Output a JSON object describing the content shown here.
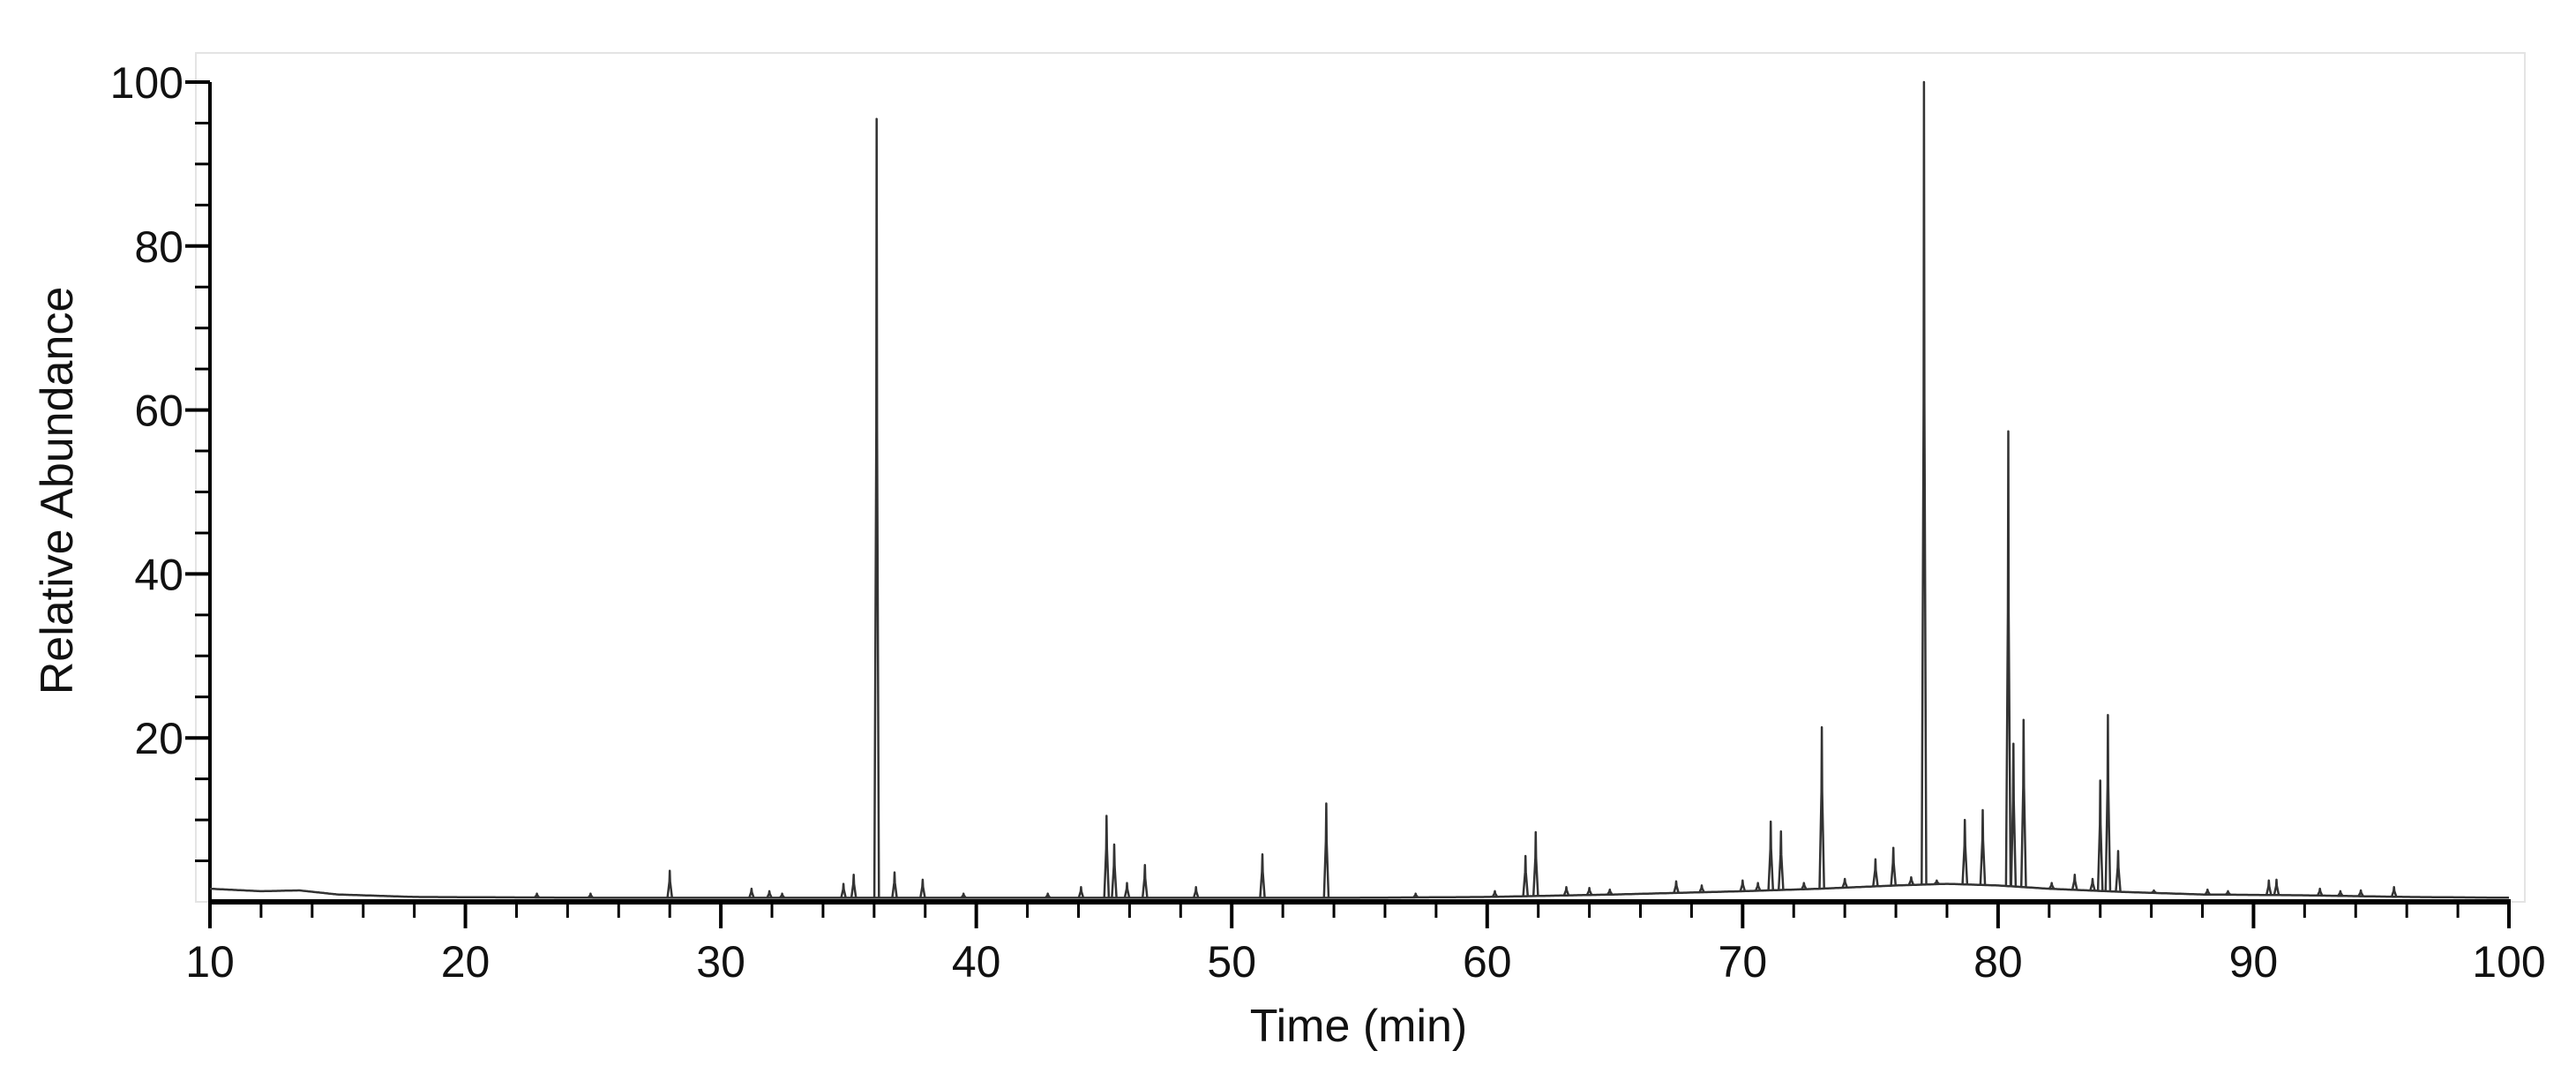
{
  "chart_data": {
    "type": "line",
    "title": "",
    "xlabel": "Time (min)",
    "ylabel": "Relative Abundance",
    "xlim": [
      10,
      100
    ],
    "ylim": [
      0,
      100
    ],
    "x_ticks": [
      10,
      20,
      30,
      40,
      50,
      60,
      70,
      80,
      90,
      100
    ],
    "x_tick_labels": [
      "10",
      "20",
      "30",
      "40",
      "50",
      "60",
      "70",
      "80",
      "90",
      "100"
    ],
    "x_minor_step": 2,
    "y_ticks": [
      20,
      40,
      60,
      80,
      100
    ],
    "y_tick_labels": [
      "20",
      "40",
      "60",
      "80",
      "100"
    ],
    "y_minor_step": 5,
    "grid": false,
    "legend": "none",
    "line_color": "#333333",
    "baseline": [
      [
        10,
        1.6
      ],
      [
        12,
        1.3
      ],
      [
        13.5,
        1.4
      ],
      [
        15,
        0.9
      ],
      [
        18,
        0.6
      ],
      [
        25,
        0.5
      ],
      [
        35,
        0.5
      ],
      [
        45,
        0.5
      ],
      [
        55,
        0.5
      ],
      [
        60,
        0.6
      ],
      [
        65,
        0.9
      ],
      [
        70,
        1.3
      ],
      [
        73,
        1.6
      ],
      [
        76,
        2.0
      ],
      [
        78,
        2.2
      ],
      [
        80,
        2.0
      ],
      [
        82,
        1.6
      ],
      [
        85,
        1.2
      ],
      [
        88,
        0.9
      ],
      [
        92,
        0.8
      ],
      [
        96,
        0.6
      ],
      [
        100,
        0.5
      ]
    ],
    "peaks": [
      {
        "rt": 22.8,
        "height": 1.0
      },
      {
        "rt": 24.9,
        "height": 1.0
      },
      {
        "rt": 28.0,
        "height": 3.8
      },
      {
        "rt": 31.2,
        "height": 1.6
      },
      {
        "rt": 31.9,
        "height": 1.3
      },
      {
        "rt": 32.4,
        "height": 1.0
      },
      {
        "rt": 34.8,
        "height": 2.2
      },
      {
        "rt": 35.2,
        "height": 3.3
      },
      {
        "rt": 36.1,
        "height": 95.5
      },
      {
        "rt": 36.8,
        "height": 3.6
      },
      {
        "rt": 37.9,
        "height": 2.7
      },
      {
        "rt": 39.5,
        "height": 1.0
      },
      {
        "rt": 42.8,
        "height": 1.0
      },
      {
        "rt": 44.1,
        "height": 1.8
      },
      {
        "rt": 45.1,
        "height": 10.5
      },
      {
        "rt": 45.4,
        "height": 7.0
      },
      {
        "rt": 45.9,
        "height": 2.3
      },
      {
        "rt": 46.6,
        "height": 4.5
      },
      {
        "rt": 48.6,
        "height": 1.8
      },
      {
        "rt": 51.2,
        "height": 5.8
      },
      {
        "rt": 53.7,
        "height": 12.0
      },
      {
        "rt": 57.2,
        "height": 1.0
      },
      {
        "rt": 60.3,
        "height": 1.3
      },
      {
        "rt": 61.5,
        "height": 5.6
      },
      {
        "rt": 61.9,
        "height": 8.5
      },
      {
        "rt": 63.1,
        "height": 1.8
      },
      {
        "rt": 64.0,
        "height": 1.7
      },
      {
        "rt": 64.8,
        "height": 1.5
      },
      {
        "rt": 67.4,
        "height": 2.5
      },
      {
        "rt": 68.4,
        "height": 2.0
      },
      {
        "rt": 70.0,
        "height": 2.6
      },
      {
        "rt": 70.6,
        "height": 2.3
      },
      {
        "rt": 71.1,
        "height": 9.8
      },
      {
        "rt": 71.5,
        "height": 8.6
      },
      {
        "rt": 72.4,
        "height": 2.3
      },
      {
        "rt": 73.1,
        "height": 21.3
      },
      {
        "rt": 74.0,
        "height": 2.8
      },
      {
        "rt": 75.2,
        "height": 5.2
      },
      {
        "rt": 75.9,
        "height": 6.6
      },
      {
        "rt": 76.6,
        "height": 3.0
      },
      {
        "rt": 77.1,
        "height": 100
      },
      {
        "rt": 77.6,
        "height": 2.6
      },
      {
        "rt": 78.7,
        "height": 10.0
      },
      {
        "rt": 79.4,
        "height": 11.2
      },
      {
        "rt": 80.4,
        "height": 57.4
      },
      {
        "rt": 80.6,
        "height": 19.3
      },
      {
        "rt": 81.0,
        "height": 22.2
      },
      {
        "rt": 82.1,
        "height": 2.3
      },
      {
        "rt": 83.0,
        "height": 3.3
      },
      {
        "rt": 83.7,
        "height": 2.8
      },
      {
        "rt": 84.0,
        "height": 14.8
      },
      {
        "rt": 84.3,
        "height": 22.8
      },
      {
        "rt": 84.7,
        "height": 6.2
      },
      {
        "rt": 86.1,
        "height": 1.2
      },
      {
        "rt": 88.2,
        "height": 1.5
      },
      {
        "rt": 89.0,
        "height": 1.3
      },
      {
        "rt": 90.6,
        "height": 2.6
      },
      {
        "rt": 90.9,
        "height": 2.7
      },
      {
        "rt": 92.6,
        "height": 1.6
      },
      {
        "rt": 93.4,
        "height": 1.3
      },
      {
        "rt": 94.2,
        "height": 1.4
      },
      {
        "rt": 95.5,
        "height": 1.8
      }
    ]
  }
}
